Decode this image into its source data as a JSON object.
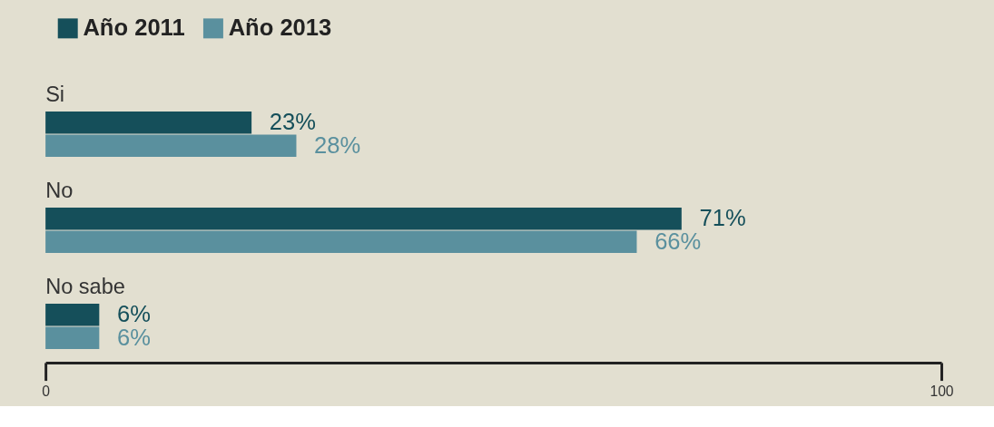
{
  "chart_data": {
    "type": "bar",
    "orientation": "horizontal",
    "categories": [
      "Si",
      "No",
      "No sabe"
    ],
    "series": [
      {
        "name": "Año 2011",
        "color": "#154f5a",
        "values": [
          23,
          71,
          6
        ],
        "value_labels": [
          "23%",
          "71%",
          "6%"
        ]
      },
      {
        "name": "Año 2013",
        "color": "#5a909e",
        "values": [
          28,
          66,
          6
        ],
        "value_labels": [
          "28%",
          "66%",
          "6%"
        ]
      }
    ],
    "xlim": [
      0,
      100
    ],
    "xticks": [
      0,
      100
    ],
    "legend": "top left",
    "grid": false
  }
}
